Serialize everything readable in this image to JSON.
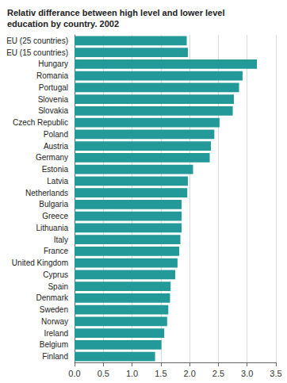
{
  "chart_data": {
    "type": "bar",
    "orientation": "horizontal",
    "title": "Relativ differance between high level and lower level education by country. 2002",
    "categories": [
      "EU (25 countries)",
      "EU (15 countries)",
      "Hungary",
      "Romania",
      "Portugal",
      "Slovenia",
      "Slovakia",
      "Czech Republic",
      "Poland",
      "Austria",
      "Germany",
      "Estonia",
      "Latvia",
      "Netherlands",
      "Bulgaria",
      "Greece",
      "Lithuania",
      "Italy",
      "France",
      "United Kingdom",
      "Cyprus",
      "Spain",
      "Denmark",
      "Sweden",
      "Norway",
      "Ireland",
      "Belgium",
      "Finland"
    ],
    "values": [
      1.95,
      1.97,
      3.17,
      2.92,
      2.86,
      2.77,
      2.75,
      2.52,
      2.43,
      2.37,
      2.35,
      2.06,
      1.97,
      1.96,
      1.86,
      1.86,
      1.86,
      1.84,
      1.82,
      1.79,
      1.75,
      1.67,
      1.66,
      1.63,
      1.61,
      1.56,
      1.51,
      1.4
    ],
    "color": "#23999a",
    "xlim": [
      0,
      3.5
    ],
    "xticks": [
      {
        "value": 0,
        "label": "0.0"
      },
      0.5,
      {
        "value": 1,
        "label": "1.0"
      },
      1.5,
      {
        "value": 2,
        "label": "2.0"
      },
      2.5,
      {
        "value": 3,
        "label": "3.0"
      },
      3.5
    ],
    "grid": true
  }
}
